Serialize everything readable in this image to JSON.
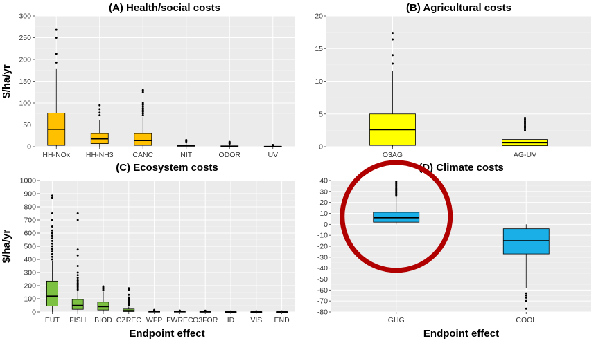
{
  "chart_data": [
    {
      "id": "A",
      "type": "box",
      "title": "(A) Health/social costs",
      "ylabel": "$/ha/yr",
      "xlabel": "",
      "ylim": [
        0,
        300
      ],
      "yticks": [
        0,
        50,
        100,
        150,
        200,
        250,
        300
      ],
      "categories": [
        "HH-NOx",
        "HH-NH3",
        "CANC",
        "NIT",
        "ODOR",
        "UV"
      ],
      "color": "#FFC000",
      "boxes": [
        {
          "q1": 3,
          "median": 40,
          "q3": 77,
          "low": 0,
          "high": 178,
          "outliers": [
            193,
            213,
            250,
            268
          ]
        },
        {
          "q1": 7,
          "median": 18,
          "q3": 30,
          "low": 0,
          "high": 62,
          "outliers": [
            72,
            78,
            86,
            95
          ]
        },
        {
          "q1": 3,
          "median": 14,
          "q3": 30,
          "low": 0,
          "high": 68,
          "outliers": [
            72,
            76,
            80,
            84,
            88,
            92,
            96,
            100,
            125,
            128,
            130
          ]
        },
        {
          "q1": 1,
          "median": 2,
          "q3": 4,
          "low": 0,
          "high": 8,
          "outliers": [
            10,
            12,
            14,
            15
          ]
        },
        {
          "q1": 0.5,
          "median": 1,
          "q3": 2,
          "low": 0,
          "high": 5,
          "outliers": [
            7,
            9,
            11
          ]
        },
        {
          "q1": 0.2,
          "median": 0.5,
          "q3": 1,
          "low": 0,
          "high": 2,
          "outliers": [
            3,
            4
          ]
        }
      ]
    },
    {
      "id": "B",
      "type": "box",
      "title": "(B) Agricultural costs",
      "ylabel": "",
      "xlabel": "",
      "ylim": [
        0,
        20
      ],
      "yticks": [
        0,
        5,
        10,
        15,
        20
      ],
      "categories": [
        "O3AG",
        "AG-UV"
      ],
      "color": "#FFFF00",
      "boxes": [
        {
          "q1": 0.2,
          "median": 2.6,
          "q3": 5.0,
          "low": 0,
          "high": 11.6,
          "outliers": [
            12.7,
            14.0,
            16.4,
            17.4
          ]
        },
        {
          "q1": 0.15,
          "median": 0.6,
          "q3": 1.1,
          "low": 0,
          "high": 2.3,
          "outliers": [
            2.5,
            2.7,
            2.9,
            3.1,
            3.3,
            3.5,
            3.7,
            3.9,
            4.2,
            4.4
          ]
        }
      ]
    },
    {
      "id": "C",
      "type": "box",
      "title": "(C) Ecosystem costs",
      "ylabel": "$/ha/yr",
      "xlabel": "Endpoint effect",
      "ylim": [
        0,
        1000
      ],
      "yticks": [
        0,
        100,
        200,
        300,
        400,
        500,
        600,
        700,
        800,
        900,
        1000
      ],
      "categories": [
        "EUT",
        "FISH",
        "BIOD",
        "CZREC",
        "WFP",
        "FWREC",
        "O3FOR",
        "ID",
        "VIS",
        "END"
      ],
      "color": "#7DC143",
      "boxes": [
        {
          "q1": 45,
          "median": 120,
          "q3": 235,
          "low": 0,
          "high": 385,
          "outliers": [
            400,
            420,
            440,
            460,
            480,
            500,
            520,
            540,
            560,
            580,
            600,
            620,
            650,
            700,
            750,
            870,
            885
          ]
        },
        {
          "q1": 20,
          "median": 50,
          "q3": 95,
          "low": 0,
          "high": 160,
          "outliers": [
            170,
            180,
            190,
            200,
            210,
            220,
            230,
            240,
            260,
            280,
            300,
            350,
            430,
            475,
            700,
            750
          ]
        },
        {
          "q1": 15,
          "median": 40,
          "q3": 75,
          "low": 0,
          "high": 155,
          "outliers": [
            165,
            175,
            185,
            195
          ]
        },
        {
          "q1": 3,
          "median": 10,
          "q3": 22,
          "low": 0,
          "high": 40,
          "outliers": [
            50,
            60,
            70,
            80,
            90,
            100,
            110,
            130,
            170,
            180
          ]
        },
        {
          "q1": 1,
          "median": 2,
          "q3": 4,
          "low": 0,
          "high": 6,
          "outliers": [
            8,
            12,
            15
          ]
        },
        {
          "q1": 1,
          "median": 2,
          "q3": 4,
          "low": 0,
          "high": 6,
          "outliers": [
            8,
            10
          ]
        },
        {
          "q1": 1,
          "median": 2,
          "q3": 3,
          "low": 0,
          "high": 5,
          "outliers": [
            7,
            9
          ]
        },
        {
          "q1": 0.5,
          "median": 1,
          "q3": 2,
          "low": 0,
          "high": 3,
          "outliers": [
            4
          ]
        },
        {
          "q1": 0.5,
          "median": 1,
          "q3": 2,
          "low": 0,
          "high": 3,
          "outliers": [
            5
          ]
        },
        {
          "q1": 0.5,
          "median": 1,
          "q3": 2,
          "low": 0,
          "high": 3,
          "outliers": [
            4
          ]
        }
      ]
    },
    {
      "id": "D",
      "type": "box",
      "title": "(D) Climate costs",
      "ylabel": "",
      "xlabel": "Endpoint effect",
      "ylim": [
        -80,
        40
      ],
      "yticks": [
        -80,
        -70,
        -60,
        -50,
        -40,
        -30,
        -20,
        -10,
        0,
        10,
        20,
        30,
        40
      ],
      "categories": [
        "GHG",
        "COOL"
      ],
      "color": "#1AAFE6",
      "boxes": [
        {
          "q1": 2,
          "median": 6,
          "q3": 11,
          "low": 0,
          "high": 25,
          "outliers": [
            26,
            27,
            28,
            29,
            30,
            31,
            32,
            33,
            34,
            35,
            36,
            37,
            38,
            39
          ]
        },
        {
          "q1": -27,
          "median": -15,
          "q3": -4,
          "low": -58,
          "high": 0,
          "outliers": [
            -63,
            -65,
            -67,
            -70,
            -77
          ]
        }
      ],
      "annotation": {
        "shape": "circle",
        "color": "#B00000",
        "target": "GHG"
      }
    }
  ]
}
